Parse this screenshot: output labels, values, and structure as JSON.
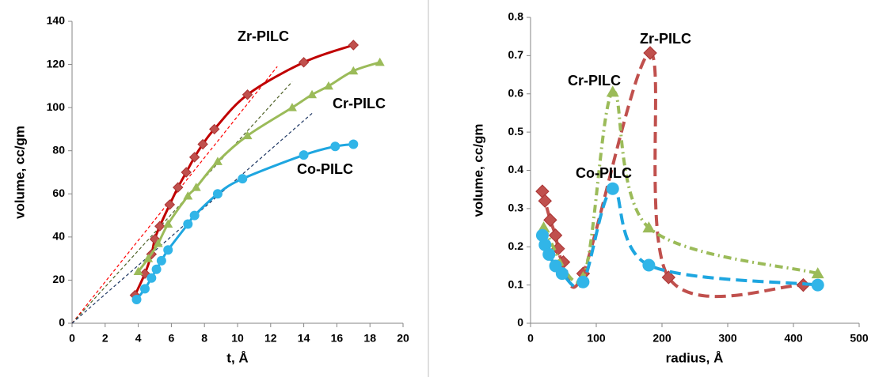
{
  "chart_data": [
    {
      "type": "line",
      "xlabel": "t, Å",
      "ylabel": "volume, cc/gm",
      "xlim": [
        0,
        20
      ],
      "ylim": [
        0,
        140
      ],
      "xticks": [
        0,
        2,
        4,
        6,
        8,
        10,
        12,
        14,
        16,
        18,
        20
      ],
      "yticks": [
        0,
        20,
        40,
        60,
        80,
        100,
        120,
        140
      ],
      "series": [
        {
          "name": "Zr-PILC",
          "color": "#c00000",
          "marker_color": "#c0504d",
          "marker": "diamond",
          "dash": "solid",
          "x": [
            3.8,
            4.4,
            4.8,
            5.0,
            5.3,
            5.9,
            6.4,
            6.9,
            7.4,
            7.9,
            8.6,
            10.6,
            14.0,
            17.0
          ],
          "values": [
            13,
            23,
            32,
            39,
            45,
            55,
            63,
            70,
            77,
            83,
            90,
            106,
            121,
            129
          ]
        },
        {
          "name": "Cr-PILC",
          "color": "#9bbb59",
          "marker_color": "#9bbb59",
          "marker": "triangle",
          "dash": "solid",
          "x": [
            4.0,
            4.6,
            5.2,
            5.8,
            7.0,
            7.5,
            8.8,
            10.6,
            13.3,
            14.5,
            15.5,
            17.0,
            18.6
          ],
          "values": [
            24,
            30,
            37,
            46,
            59,
            63,
            75,
            87,
            100,
            106,
            110,
            117,
            121
          ]
        },
        {
          "name": "Co-PILC",
          "color": "#1ea6e0",
          "marker_color": "#31b5e8",
          "marker": "circle",
          "dash": "solid",
          "x": [
            3.9,
            4.4,
            4.8,
            5.1,
            5.4,
            5.8,
            7.0,
            7.4,
            8.8,
            10.3,
            14.0,
            15.9,
            17.0
          ],
          "values": [
            11,
            16,
            21,
            25,
            29,
            34,
            46,
            50,
            60,
            67,
            78,
            82,
            83
          ]
        }
      ],
      "reference_lines": [
        {
          "color": "#ff0000",
          "x": [
            0,
            12.4
          ],
          "values": [
            0,
            119
          ]
        },
        {
          "color": "#4f6228",
          "x": [
            0,
            13.3
          ],
          "values": [
            0,
            112
          ]
        },
        {
          "color": "#1f3864",
          "x": [
            0,
            14.6
          ],
          "values": [
            0,
            98
          ]
        }
      ]
    },
    {
      "type": "line",
      "xlabel": "radius, Å",
      "ylabel": "volume, cc/gm",
      "xlim": [
        0,
        500
      ],
      "ylim": [
        0,
        0.8
      ],
      "xticks": [
        0,
        100,
        200,
        300,
        400,
        500
      ],
      "yticks": [
        0,
        0.1,
        0.2,
        0.3,
        0.4,
        0.5,
        0.6,
        0.7,
        0.8
      ],
      "series": [
        {
          "name": "Zr-PILC",
          "color": "#c0504d",
          "marker_color": "#c0504d",
          "marker": "diamond",
          "dash": "dash",
          "x": [
            18,
            22,
            30,
            38,
            42,
            50,
            80,
            182,
            210,
            415
          ],
          "values": [
            0.345,
            0.32,
            0.27,
            0.23,
            0.195,
            0.16,
            0.13,
            0.707,
            0.12,
            0.1
          ]
        },
        {
          "name": "Cr-PILC",
          "color": "#9bbb59",
          "marker_color": "#9bbb59",
          "marker": "triangle",
          "dash": "dashdot",
          "x": [
            20,
            80,
            125,
            180,
            437
          ],
          "values": [
            0.25,
            0.12,
            0.605,
            0.25,
            0.13
          ]
        },
        {
          "name": "Co-PILC",
          "color": "#1ea6e0",
          "marker_color": "#31b5e8",
          "marker": "circle",
          "dash": "dash",
          "x": [
            18,
            22,
            28,
            38,
            48,
            80,
            125,
            180,
            437
          ],
          "values": [
            0.23,
            0.205,
            0.18,
            0.15,
            0.13,
            0.108,
            0.352,
            0.152,
            0.1
          ]
        }
      ]
    }
  ]
}
